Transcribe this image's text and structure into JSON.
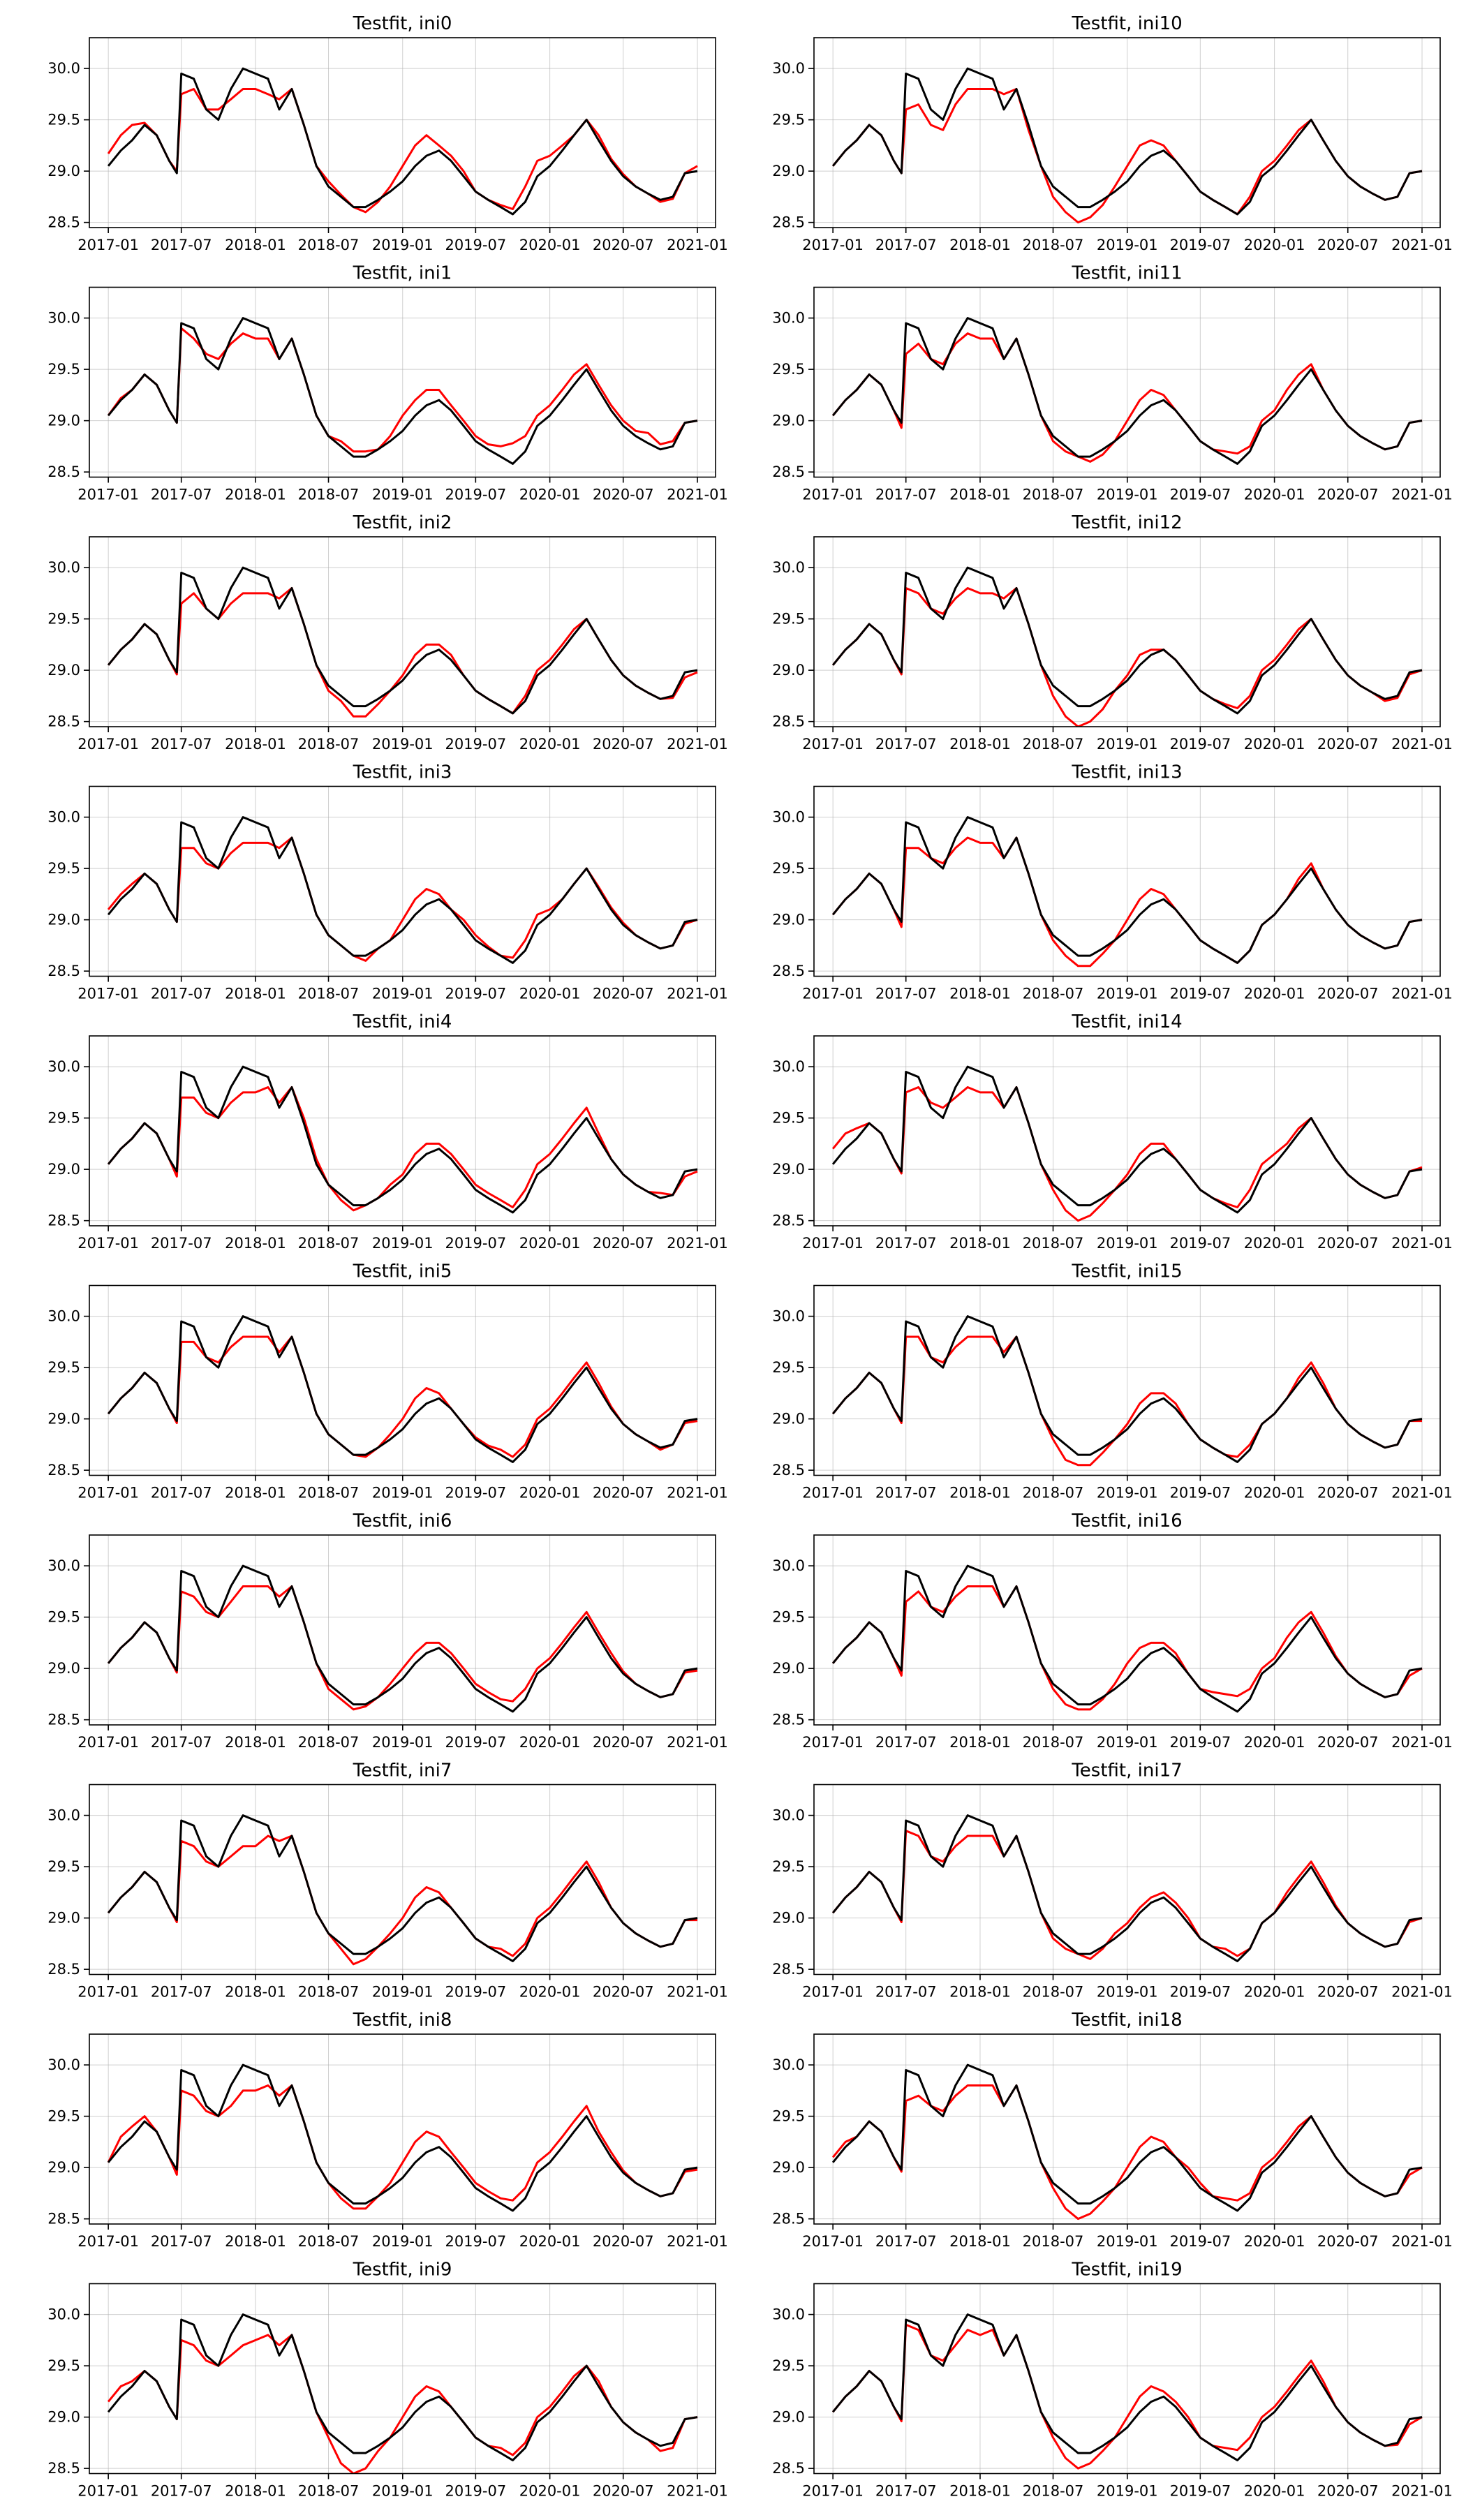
{
  "chart_data": {
    "type": "line",
    "layout": {
      "rows": 10,
      "cols": 2
    },
    "x_ticks": [
      "2017-01",
      "2017-07",
      "2018-01",
      "2018-07",
      "2019-01",
      "2019-07",
      "2020-01",
      "2020-07",
      "2021-01"
    ],
    "y_ticks": [
      "28.5",
      "29.0",
      "29.5",
      "30.0"
    ],
    "xlim": [
      "2016-11-15",
      "2021-02-15"
    ],
    "ylim": [
      28.45,
      30.3
    ],
    "grid": true,
    "legend": "none",
    "series_colors": {
      "observed": "#000000",
      "fit": "#ff0000"
    },
    "observed": {
      "x": [
        "2017-01-01",
        "2017-02-01",
        "2017-03-01",
        "2017-04-01",
        "2017-05-01",
        "2017-06-01",
        "2017-06-20",
        "2017-07-01",
        "2017-08-01",
        "2017-09-01",
        "2017-10-01",
        "2017-11-01",
        "2017-12-01",
        "2018-01-01",
        "2018-02-01",
        "2018-03-01",
        "2018-04-01",
        "2018-05-01",
        "2018-06-01",
        "2018-07-01",
        "2018-08-01",
        "2018-09-01",
        "2018-10-01",
        "2018-11-01",
        "2018-12-01",
        "2019-01-01",
        "2019-02-01",
        "2019-03-01",
        "2019-04-01",
        "2019-05-01",
        "2019-06-01",
        "2019-07-01",
        "2019-08-01",
        "2019-09-01",
        "2019-10-01",
        "2019-11-01",
        "2019-12-01",
        "2020-01-01",
        "2020-02-01",
        "2020-03-01",
        "2020-04-01",
        "2020-05-01",
        "2020-06-01",
        "2020-07-01",
        "2020-08-01",
        "2020-09-01",
        "2020-10-01",
        "2020-11-01",
        "2020-12-01",
        "2021-01-01"
      ],
      "y": [
        29.05,
        29.2,
        29.3,
        29.45,
        29.35,
        29.1,
        28.98,
        29.95,
        29.9,
        29.6,
        29.5,
        29.8,
        30.0,
        29.95,
        29.9,
        29.6,
        29.8,
        29.45,
        29.05,
        28.85,
        28.75,
        28.65,
        28.65,
        28.72,
        28.8,
        28.9,
        29.05,
        29.15,
        29.2,
        29.1,
        28.95,
        28.8,
        28.72,
        28.65,
        28.58,
        28.7,
        28.95,
        29.05,
        29.2,
        29.35,
        29.5,
        29.3,
        29.1,
        28.95,
        28.85,
        28.78,
        28.72,
        28.75,
        28.98,
        29.0
      ]
    },
    "panels": [
      {
        "title": "Testfit, ini0",
        "offsets": [
          0.12,
          0.15,
          0.15,
          0.02,
          0.0,
          0.0,
          0.02,
          -0.2,
          -0.1,
          0.0,
          0.1,
          -0.1,
          -0.2,
          -0.15,
          -0.15,
          0.1,
          0.0,
          0.0,
          0.0,
          0.05,
          0.02,
          0.0,
          -0.05,
          -0.02,
          0.05,
          0.15,
          0.2,
          0.2,
          0.05,
          0.05,
          0.05,
          0.0,
          0.0,
          0.02,
          0.05,
          0.15,
          0.15,
          0.1,
          0.05,
          0.0,
          0.0,
          0.05,
          0.02,
          0.02,
          0.0,
          0.0,
          -0.02,
          -0.02,
          0.0,
          0.05
        ]
      },
      {
        "title": "Testfit, ini10",
        "offsets": [
          0.0,
          0.0,
          0.0,
          0.0,
          0.0,
          0.0,
          0.0,
          -0.35,
          -0.25,
          -0.15,
          -0.1,
          -0.15,
          -0.2,
          -0.15,
          -0.1,
          0.15,
          0.0,
          -0.05,
          0.0,
          -0.1,
          -0.15,
          -0.15,
          -0.1,
          -0.05,
          0.05,
          0.15,
          0.2,
          0.15,
          0.05,
          0.0,
          0.0,
          0.0,
          0.0,
          0.0,
          0.0,
          0.05,
          0.05,
          0.05,
          0.05,
          0.05,
          0.0,
          0.0,
          0.0,
          0.0,
          0.0,
          0.0,
          0.0,
          0.0,
          0.0,
          0.0
        ]
      },
      {
        "title": "Testfit, ini1",
        "offsets": [
          0.0,
          0.02,
          0.0,
          0.0,
          0.0,
          0.0,
          0.0,
          -0.05,
          -0.1,
          0.05,
          0.1,
          -0.05,
          -0.15,
          -0.15,
          -0.1,
          0.0,
          0.0,
          0.0,
          0.0,
          0.0,
          0.05,
          0.05,
          0.05,
          0.0,
          0.05,
          0.15,
          0.15,
          0.15,
          0.1,
          0.05,
          0.05,
          0.05,
          0.05,
          0.1,
          0.2,
          0.15,
          0.1,
          0.1,
          0.1,
          0.1,
          0.05,
          0.05,
          0.05,
          0.05,
          0.05,
          0.1,
          0.05,
          0.05,
          0.0,
          0.0
        ]
      },
      {
        "title": "Testfit, ini11",
        "offsets": [
          0.0,
          0.0,
          0.0,
          0.0,
          0.0,
          0.0,
          -0.05,
          -0.3,
          -0.15,
          0.0,
          0.05,
          -0.05,
          -0.15,
          -0.15,
          -0.1,
          0.0,
          0.0,
          0.0,
          0.0,
          -0.05,
          -0.05,
          0.0,
          -0.05,
          -0.05,
          0.0,
          0.1,
          0.15,
          0.15,
          0.05,
          0.0,
          0.0,
          0.0,
          0.0,
          0.05,
          0.1,
          0.05,
          0.05,
          0.05,
          0.1,
          0.1,
          0.05,
          0.0,
          0.0,
          0.0,
          0.0,
          0.0,
          0.0,
          0.0,
          0.0,
          0.0
        ]
      },
      {
        "title": "Testfit, ini2",
        "offsets": [
          0.0,
          0.0,
          0.0,
          0.0,
          0.0,
          0.0,
          -0.02,
          -0.3,
          -0.15,
          0.0,
          0.0,
          -0.15,
          -0.25,
          -0.2,
          -0.15,
          0.1,
          0.0,
          0.0,
          0.0,
          -0.05,
          -0.05,
          -0.1,
          -0.1,
          -0.05,
          0.0,
          0.05,
          0.1,
          0.1,
          0.05,
          0.05,
          0.0,
          0.0,
          0.0,
          0.0,
          0.0,
          0.05,
          0.05,
          0.05,
          0.05,
          0.05,
          0.0,
          0.0,
          0.0,
          0.0,
          0.0,
          0.0,
          0.0,
          -0.02,
          -0.05,
          -0.02
        ]
      },
      {
        "title": "Testfit, ini12",
        "offsets": [
          0.0,
          0.0,
          0.0,
          0.0,
          0.0,
          0.0,
          -0.02,
          -0.15,
          -0.15,
          0.0,
          0.05,
          -0.1,
          -0.2,
          -0.2,
          -0.15,
          0.1,
          0.0,
          0.0,
          0.0,
          -0.1,
          -0.2,
          -0.2,
          -0.15,
          -0.1,
          0.0,
          0.05,
          0.1,
          0.05,
          0.0,
          0.0,
          0.0,
          0.0,
          0.0,
          0.02,
          0.05,
          0.05,
          0.05,
          0.05,
          0.05,
          0.05,
          0.0,
          0.0,
          0.0,
          0.0,
          0.0,
          0.0,
          -0.02,
          -0.02,
          -0.02,
          0.0
        ]
      },
      {
        "title": "Testfit, ini3",
        "offsets": [
          0.05,
          0.05,
          0.05,
          0.0,
          0.0,
          0.0,
          0.0,
          -0.25,
          -0.2,
          -0.05,
          0.0,
          -0.15,
          -0.25,
          -0.2,
          -0.15,
          0.1,
          0.0,
          0.0,
          0.0,
          0.0,
          0.0,
          0.0,
          -0.05,
          0.0,
          0.0,
          0.1,
          0.15,
          0.15,
          0.05,
          0.0,
          0.05,
          0.05,
          0.02,
          0.0,
          0.05,
          0.1,
          0.1,
          0.05,
          0.0,
          0.0,
          0.0,
          0.02,
          0.02,
          0.02,
          0.0,
          0.0,
          0.0,
          0.0,
          -0.02,
          0.0
        ]
      },
      {
        "title": "Testfit, ini13",
        "offsets": [
          0.0,
          0.0,
          0.0,
          0.0,
          0.0,
          0.0,
          -0.05,
          -0.25,
          -0.2,
          0.0,
          0.05,
          -0.1,
          -0.2,
          -0.2,
          -0.15,
          0.0,
          0.0,
          0.0,
          0.0,
          -0.05,
          -0.1,
          -0.1,
          -0.1,
          -0.05,
          0.0,
          0.1,
          0.15,
          0.15,
          0.05,
          0.0,
          0.0,
          0.0,
          0.0,
          0.0,
          0.0,
          0.0,
          0.0,
          0.0,
          0.0,
          0.05,
          0.05,
          0.0,
          0.0,
          0.0,
          0.0,
          0.0,
          0.0,
          0.0,
          0.0,
          0.0
        ]
      },
      {
        "title": "Testfit, ini4",
        "offsets": [
          0.0,
          0.0,
          0.0,
          0.0,
          0.0,
          0.0,
          -0.05,
          -0.25,
          -0.2,
          -0.05,
          0.0,
          -0.15,
          -0.25,
          -0.2,
          -0.1,
          0.05,
          0.0,
          0.05,
          0.05,
          0.0,
          -0.05,
          -0.05,
          0.0,
          0.0,
          0.05,
          0.05,
          0.1,
          0.1,
          0.05,
          0.05,
          0.05,
          0.05,
          0.05,
          0.05,
          0.05,
          0.1,
          0.1,
          0.1,
          0.1,
          0.1,
          0.1,
          0.05,
          0.0,
          0.0,
          0.0,
          0.0,
          0.05,
          0.0,
          -0.05,
          -0.02
        ]
      },
      {
        "title": "Testfit, ini14",
        "offsets": [
          0.15,
          0.15,
          0.1,
          0.0,
          0.0,
          0.0,
          -0.02,
          -0.2,
          -0.1,
          0.05,
          0.1,
          -0.1,
          -0.2,
          -0.2,
          -0.15,
          0.0,
          0.0,
          0.0,
          0.0,
          -0.05,
          -0.15,
          -0.15,
          -0.1,
          -0.05,
          0.0,
          0.05,
          0.1,
          0.1,
          0.05,
          0.0,
          0.0,
          0.0,
          0.0,
          0.02,
          0.05,
          0.1,
          0.1,
          0.1,
          0.05,
          0.05,
          0.0,
          0.0,
          0.0,
          0.0,
          0.0,
          0.0,
          0.0,
          0.0,
          0.0,
          0.02
        ]
      },
      {
        "title": "Testfit, ini5",
        "offsets": [
          0.0,
          0.0,
          0.0,
          0.0,
          0.0,
          0.0,
          -0.02,
          -0.2,
          -0.15,
          0.0,
          0.05,
          -0.1,
          -0.2,
          -0.15,
          -0.1,
          0.05,
          0.0,
          0.0,
          0.0,
          0.0,
          0.0,
          0.0,
          -0.02,
          0.0,
          0.05,
          0.1,
          0.15,
          0.15,
          0.05,
          0.0,
          0.0,
          0.02,
          0.02,
          0.05,
          0.05,
          0.05,
          0.05,
          0.05,
          0.05,
          0.05,
          0.05,
          0.05,
          0.02,
          0.0,
          0.0,
          0.0,
          -0.02,
          0.0,
          -0.02,
          -0.02
        ]
      },
      {
        "title": "Testfit, ini15",
        "offsets": [
          0.0,
          0.0,
          0.0,
          0.0,
          0.0,
          0.0,
          -0.02,
          -0.15,
          -0.1,
          0.0,
          0.05,
          -0.1,
          -0.2,
          -0.15,
          -0.1,
          0.05,
          0.0,
          0.0,
          0.0,
          -0.05,
          -0.15,
          -0.1,
          -0.1,
          -0.05,
          0.0,
          0.05,
          0.1,
          0.1,
          0.05,
          0.05,
          0.0,
          0.0,
          0.0,
          0.0,
          0.05,
          0.05,
          0.0,
          0.0,
          0.0,
          0.05,
          0.05,
          0.05,
          0.0,
          0.0,
          0.0,
          0.0,
          0.0,
          0.0,
          0.0,
          -0.02
        ]
      },
      {
        "title": "Testfit, ini6",
        "offsets": [
          0.0,
          0.0,
          0.0,
          0.0,
          0.0,
          0.0,
          -0.02,
          -0.2,
          -0.2,
          -0.05,
          0.0,
          -0.15,
          -0.2,
          -0.15,
          -0.1,
          0.1,
          0.0,
          0.0,
          0.0,
          -0.05,
          -0.05,
          -0.05,
          -0.02,
          0.0,
          0.05,
          0.1,
          0.1,
          0.1,
          0.05,
          0.05,
          0.05,
          0.05,
          0.05,
          0.05,
          0.1,
          0.1,
          0.05,
          0.05,
          0.05,
          0.05,
          0.05,
          0.05,
          0.05,
          0.02,
          0.0,
          0.0,
          0.0,
          0.0,
          -0.02,
          -0.02
        ]
      },
      {
        "title": "Testfit, ini16",
        "offsets": [
          0.0,
          0.0,
          0.0,
          0.0,
          0.0,
          0.0,
          -0.05,
          -0.3,
          -0.15,
          0.0,
          0.05,
          -0.1,
          -0.2,
          -0.15,
          -0.1,
          0.0,
          0.0,
          0.0,
          0.0,
          -0.05,
          -0.1,
          -0.05,
          -0.05,
          -0.02,
          0.05,
          0.15,
          0.15,
          0.1,
          0.05,
          0.05,
          0.0,
          0.0,
          0.05,
          0.1,
          0.15,
          0.1,
          0.05,
          0.05,
          0.1,
          0.1,
          0.05,
          0.05,
          0.02,
          0.0,
          0.0,
          0.0,
          0.0,
          0.0,
          -0.05,
          0.0
        ]
      },
      {
        "title": "Testfit, ini7",
        "offsets": [
          0.0,
          0.0,
          0.0,
          0.0,
          0.0,
          0.0,
          -0.02,
          -0.2,
          -0.2,
          -0.05,
          0.0,
          -0.2,
          -0.3,
          -0.25,
          -0.1,
          0.15,
          0.0,
          0.0,
          0.0,
          0.0,
          -0.05,
          -0.1,
          -0.05,
          0.0,
          0.05,
          0.1,
          0.15,
          0.15,
          0.05,
          0.0,
          0.0,
          0.0,
          0.0,
          0.05,
          0.05,
          0.05,
          0.05,
          0.05,
          0.05,
          0.05,
          0.05,
          0.05,
          0.0,
          0.0,
          0.0,
          0.0,
          0.0,
          0.0,
          0.0,
          -0.02
        ]
      },
      {
        "title": "Testfit, ini17",
        "offsets": [
          0.0,
          0.0,
          0.0,
          0.0,
          0.0,
          0.0,
          -0.02,
          -0.1,
          -0.1,
          0.0,
          0.05,
          -0.1,
          -0.2,
          -0.15,
          -0.1,
          0.0,
          0.0,
          0.0,
          0.0,
          -0.05,
          -0.05,
          0.0,
          -0.05,
          -0.02,
          0.05,
          0.05,
          0.05,
          0.05,
          0.05,
          0.05,
          0.05,
          0.0,
          0.0,
          0.05,
          0.05,
          0.0,
          0.0,
          0.0,
          0.05,
          0.05,
          0.05,
          0.05,
          0.02,
          0.0,
          0.0,
          0.0,
          0.0,
          0.0,
          -0.02,
          0.0
        ]
      },
      {
        "title": "Testfit, ini8",
        "offsets": [
          0.0,
          0.1,
          0.1,
          0.05,
          0.0,
          0.0,
          -0.05,
          -0.2,
          -0.2,
          -0.05,
          0.0,
          -0.2,
          -0.25,
          -0.2,
          -0.1,
          0.1,
          0.0,
          0.0,
          0.0,
          0.0,
          -0.05,
          -0.05,
          -0.05,
          0.0,
          0.05,
          0.15,
          0.2,
          0.2,
          0.1,
          0.05,
          0.05,
          0.05,
          0.05,
          0.05,
          0.1,
          0.1,
          0.1,
          0.1,
          0.1,
          0.1,
          0.1,
          0.05,
          0.05,
          0.02,
          0.0,
          0.0,
          0.0,
          0.0,
          -0.02,
          -0.02
        ]
      },
      {
        "title": "Testfit, ini18",
        "offsets": [
          0.05,
          0.05,
          0.0,
          0.0,
          0.0,
          0.0,
          -0.02,
          -0.3,
          -0.2,
          0.0,
          0.05,
          -0.1,
          -0.2,
          -0.15,
          -0.1,
          0.0,
          0.0,
          0.0,
          0.0,
          -0.05,
          -0.15,
          -0.15,
          -0.1,
          -0.05,
          0.0,
          0.1,
          0.15,
          0.15,
          0.05,
          0.0,
          0.05,
          0.05,
          0.0,
          0.05,
          0.1,
          0.05,
          0.05,
          0.05,
          0.05,
          0.05,
          0.0,
          0.0,
          0.0,
          0.0,
          0.0,
          0.0,
          0.0,
          0.0,
          -0.05,
          0.0
        ]
      },
      {
        "title": "Testfit, ini9",
        "offsets": [
          0.1,
          0.1,
          0.05,
          0.0,
          0.0,
          0.0,
          0.0,
          -0.2,
          -0.2,
          -0.05,
          0.0,
          -0.2,
          -0.3,
          -0.2,
          -0.1,
          0.1,
          0.0,
          0.0,
          0.0,
          -0.05,
          -0.2,
          -0.2,
          -0.15,
          -0.05,
          0.0,
          0.1,
          0.15,
          0.15,
          0.05,
          0.0,
          0.0,
          0.0,
          0.0,
          0.05,
          0.05,
          0.05,
          0.05,
          0.05,
          0.05,
          0.05,
          0.0,
          0.05,
          0.0,
          0.0,
          0.0,
          0.0,
          -0.05,
          -0.05,
          0.0,
          0.0
        ]
      },
      {
        "title": "Testfit, ini19",
        "offsets": [
          0.0,
          0.0,
          0.0,
          0.0,
          0.0,
          0.0,
          -0.02,
          -0.05,
          -0.05,
          0.0,
          0.05,
          -0.1,
          -0.15,
          -0.15,
          -0.05,
          0.0,
          0.0,
          0.0,
          0.0,
          -0.05,
          -0.15,
          -0.15,
          -0.1,
          -0.05,
          0.0,
          0.1,
          0.15,
          0.15,
          0.05,
          0.05,
          0.05,
          0.0,
          0.0,
          0.05,
          0.1,
          0.1,
          0.05,
          0.05,
          0.05,
          0.05,
          0.05,
          0.05,
          0.0,
          0.0,
          0.0,
          0.0,
          0.0,
          -0.02,
          -0.05,
          0.0
        ]
      }
    ]
  }
}
